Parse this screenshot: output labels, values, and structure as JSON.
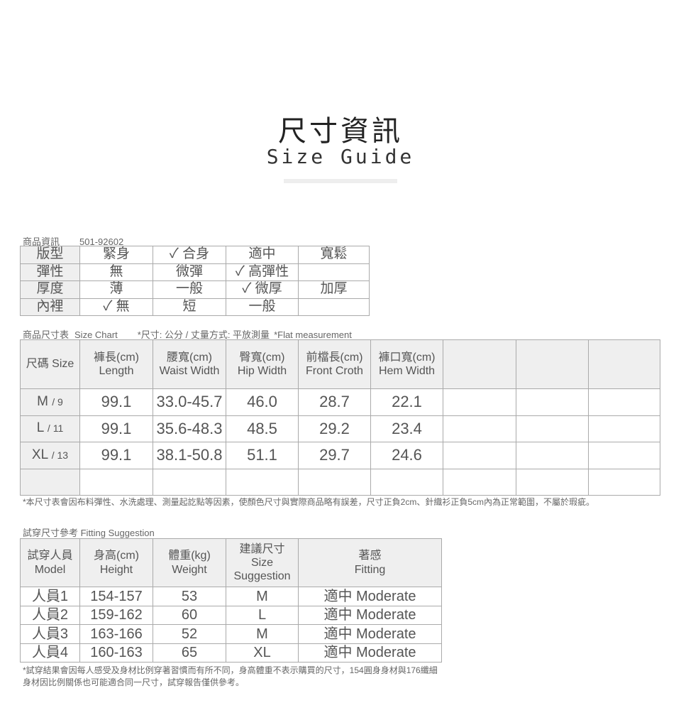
{
  "header": {
    "title": "尺寸資訊",
    "subtitle": "Size Guide"
  },
  "product_info": {
    "label": "商品資訊",
    "code": "501-92602",
    "rows": [
      {
        "name": "版型",
        "options": [
          "緊身",
          "✓ 合身",
          "適中",
          "寬鬆"
        ]
      },
      {
        "name": "彈性",
        "options": [
          "無",
          "微彈",
          "✓ 高彈性",
          ""
        ]
      },
      {
        "name": "厚度",
        "options": [
          "薄",
          "一般",
          "✓ 微厚",
          "加厚"
        ]
      },
      {
        "name": "內裡",
        "options": [
          "✓ 無",
          "短",
          "一般",
          ""
        ]
      }
    ]
  },
  "size_chart": {
    "label": "商品尺寸表",
    "label_en": "Size Chart",
    "unit_note": "*尺寸: 公分 / 丈量方式: 平放測量",
    "flat_note": "*Flat measurement",
    "headers": [
      {
        "zh": "尺碼 Size",
        "en": ""
      },
      {
        "zh": "褲長(cm)",
        "en": "Length"
      },
      {
        "zh": "腰寬(cm)",
        "en": "Waist Width"
      },
      {
        "zh": "臀寬(cm)",
        "en": "Hip Width"
      },
      {
        "zh": "前檔長(cm)",
        "en": "Front Croth"
      },
      {
        "zh": "褲口寬(cm)",
        "en": "Hem Width"
      }
    ],
    "rows": [
      {
        "size": "M",
        "num": "/ 9",
        "values": [
          "99.1",
          "33.0-45.7",
          "46.0",
          "28.7",
          "22.1"
        ]
      },
      {
        "size": "L",
        "num": "/ 11",
        "values": [
          "99.1",
          "35.6-48.3",
          "48.5",
          "29.2",
          "23.4"
        ]
      },
      {
        "size": "XL",
        "num": "/ 13",
        "values": [
          "99.1",
          "38.1-50.8",
          "51.1",
          "29.7",
          "24.6"
        ]
      }
    ],
    "disclaimer": "*本尺寸表會因布料彈性、水洗處理、測量起訖點等因素，使顏色尺寸與實際商品略有誤差，尺寸正負2cm、針織衫正負5cm內為正常範圍，不屬於瑕疵。"
  },
  "fitting": {
    "label": "試穿尺寸參考 Fitting Suggestion",
    "headers": [
      [
        "試穿人員",
        "Model"
      ],
      [
        "身高(cm)",
        "Height"
      ],
      [
        "體重(kg)",
        "Weight"
      ],
      [
        "建議尺寸",
        "Size",
        "Suggestion"
      ],
      [
        "著感",
        "Fitting"
      ]
    ],
    "rows": [
      [
        "人員1",
        "154-157",
        "53",
        "M",
        "適中 Moderate"
      ],
      [
        "人員2",
        "159-162",
        "60",
        "L",
        "適中 Moderate"
      ],
      [
        "人員3",
        "163-166",
        "52",
        "M",
        "適中 Moderate"
      ],
      [
        "人員4",
        "160-163",
        "65",
        "XL",
        "適中 Moderate"
      ]
    ],
    "disclaimer": "*試穿結果會因每人感受及身材比例穿著習慣而有所不同，身高體重不表示購買的尺寸，154圓身身材與176纖細身材因比例關係也可能適合同一尺寸，試穿報告僅供參考。"
  }
}
